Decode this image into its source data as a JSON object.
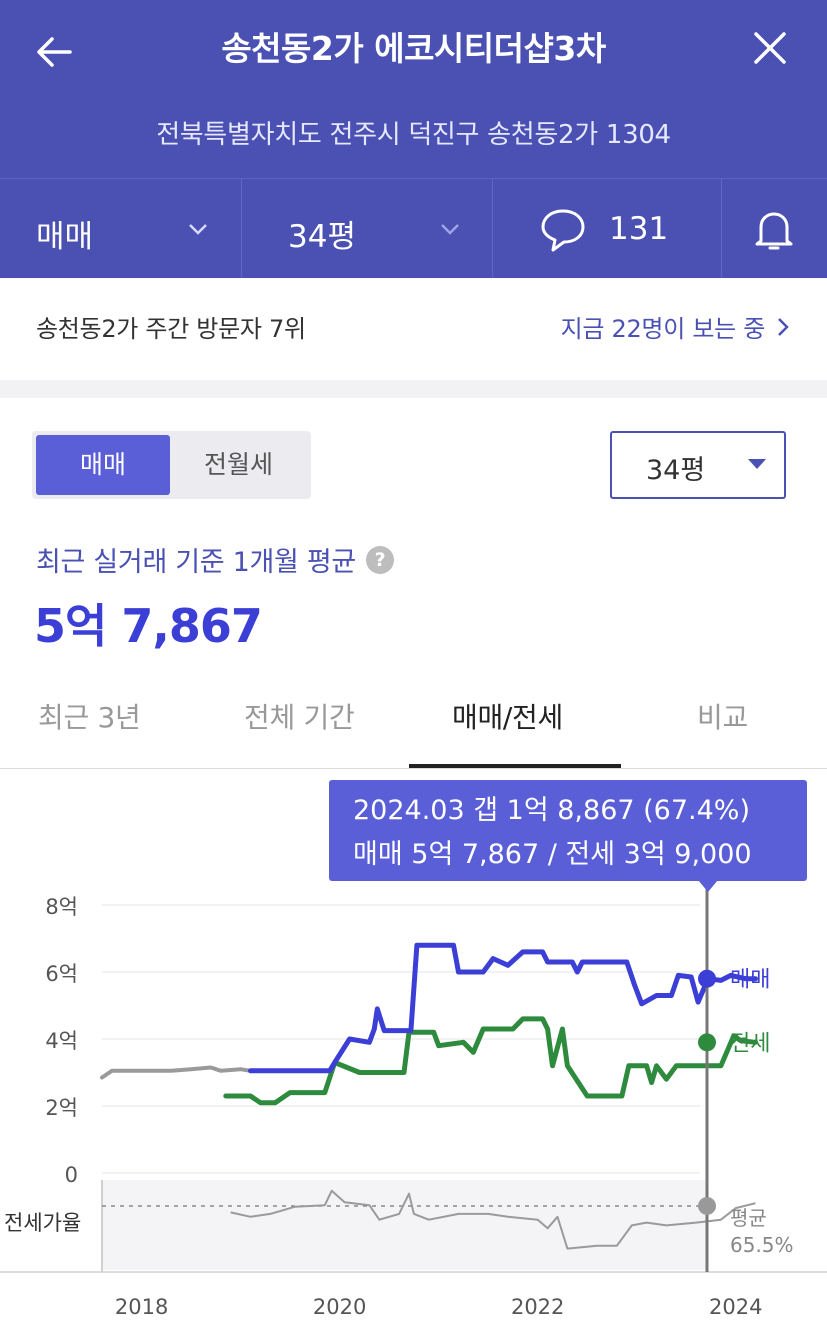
{
  "header": {
    "title": "송천동2가 에코시티더샵3차",
    "address": "전북특별자치도 전주시 덕진구 송천동2가 1304",
    "back_icon": "arrow-left-icon",
    "close_icon": "close-icon"
  },
  "filters": {
    "trade_type": "매매",
    "area": "34평",
    "comment_count": "131",
    "comment_icon": "speech-bubble-icon",
    "alarm_icon": "bell-icon"
  },
  "ranking": {
    "text": "송천동2가 주간 방문자 7위",
    "viewers": "지금 22명이 보는 중"
  },
  "controls": {
    "segment": [
      "매매",
      "전월세"
    ],
    "selected_segment": "매매",
    "size_select": "34평"
  },
  "summary": {
    "label": "최근 실거래 기준 1개월 평균",
    "price": "5억 7,867"
  },
  "tabs": [
    {
      "label": "최근 3년",
      "active": false
    },
    {
      "label": "전체 기간",
      "active": false
    },
    {
      "label": "매매/전세",
      "active": true
    },
    {
      "label": "비교",
      "active": false
    }
  ],
  "colors": {
    "brand": "#4a51b3",
    "accent": "#5a5fd8",
    "sale": "#3b3fd6",
    "jeonse": "#2e8b3e",
    "ratio": "#888888"
  },
  "tooltip": {
    "line1": "2024.03  갭 1억 8,867 (67.4%)",
    "line2": "매매 5억 7,867 / 전세 3억 9,000"
  },
  "chart_data": {
    "type": "line",
    "y_unit": "억",
    "ylim": [
      0,
      8
    ],
    "y_ticks": [
      "8억",
      "6억",
      "4억",
      "2억",
      "0"
    ],
    "y_tick_values": [
      8,
      6,
      4,
      2,
      0
    ],
    "x_ticks": [
      "2018",
      "2020",
      "2022",
      "2024"
    ],
    "x_tick_values": [
      2018,
      2020,
      2022,
      2024
    ],
    "xlim": [
      2017.6,
      2024.75
    ],
    "grid": true,
    "series": [
      {
        "name": "매매",
        "color": "#3b3fd6",
        "points": [
          [
            2019.1,
            3.05
          ],
          [
            2019.9,
            3.05
          ],
          [
            2019.95,
            3.3
          ],
          [
            2020.1,
            4.0
          ],
          [
            2020.3,
            3.9
          ],
          [
            2020.35,
            4.3
          ],
          [
            2020.38,
            4.9
          ],
          [
            2020.45,
            4.25
          ],
          [
            2020.72,
            4.25
          ],
          [
            2020.78,
            6.8
          ],
          [
            2021.15,
            6.8
          ],
          [
            2021.2,
            6.0
          ],
          [
            2021.45,
            6.0
          ],
          [
            2021.55,
            6.4
          ],
          [
            2021.7,
            6.2
          ],
          [
            2021.85,
            6.6
          ],
          [
            2022.05,
            6.6
          ],
          [
            2022.1,
            6.3
          ],
          [
            2022.35,
            6.3
          ],
          [
            2022.4,
            6.0
          ],
          [
            2022.45,
            6.3
          ],
          [
            2022.9,
            6.3
          ],
          [
            2022.98,
            5.6
          ],
          [
            2023.05,
            5.05
          ],
          [
            2023.2,
            5.3
          ],
          [
            2023.35,
            5.3
          ],
          [
            2023.42,
            5.9
          ],
          [
            2023.55,
            5.85
          ],
          [
            2023.62,
            5.1
          ],
          [
            2023.72,
            5.8
          ],
          [
            2023.85,
            5.75
          ],
          [
            2023.95,
            5.9
          ],
          [
            2024.1,
            5.8
          ],
          [
            2024.2,
            5.8
          ]
        ]
      },
      {
        "name": "전세",
        "color": "#2e8b3e",
        "points": [
          [
            2018.85,
            2.3
          ],
          [
            2019.1,
            2.3
          ],
          [
            2019.2,
            2.1
          ],
          [
            2019.35,
            2.1
          ],
          [
            2019.5,
            2.4
          ],
          [
            2019.85,
            2.4
          ],
          [
            2019.95,
            3.3
          ],
          [
            2020.2,
            3.0
          ],
          [
            2020.65,
            3.0
          ],
          [
            2020.7,
            4.2
          ],
          [
            2020.95,
            4.2
          ],
          [
            2021.0,
            3.8
          ],
          [
            2021.25,
            3.9
          ],
          [
            2021.35,
            3.6
          ],
          [
            2021.45,
            4.3
          ],
          [
            2021.75,
            4.3
          ],
          [
            2021.85,
            4.6
          ],
          [
            2022.05,
            4.6
          ],
          [
            2022.1,
            4.3
          ],
          [
            2022.15,
            3.2
          ],
          [
            2022.25,
            4.3
          ],
          [
            2022.3,
            3.2
          ],
          [
            2022.5,
            2.3
          ],
          [
            2022.85,
            2.3
          ],
          [
            2022.92,
            3.2
          ],
          [
            2023.1,
            3.2
          ],
          [
            2023.15,
            2.7
          ],
          [
            2023.2,
            3.2
          ],
          [
            2023.3,
            2.8
          ],
          [
            2023.4,
            3.2
          ],
          [
            2023.85,
            3.2
          ],
          [
            2023.98,
            4.1
          ],
          [
            2024.05,
            3.95
          ],
          [
            2024.2,
            3.9
          ]
        ]
      },
      {
        "name": "past",
        "color": "#9a9a9a",
        "points": [
          [
            2017.6,
            2.85
          ],
          [
            2017.7,
            3.05
          ],
          [
            2018.3,
            3.05
          ],
          [
            2018.5,
            3.1
          ],
          [
            2018.7,
            3.15
          ],
          [
            2018.8,
            3.05
          ],
          [
            2019.0,
            3.1
          ],
          [
            2019.1,
            3.05
          ]
        ]
      }
    ],
    "jeonse_ratio": {
      "label": "전세가율",
      "average_label": "평균",
      "average": "65.5%",
      "points": [
        [
          2018.9,
          61
        ],
        [
          2019.1,
          58
        ],
        [
          2019.3,
          60
        ],
        [
          2019.55,
          65
        ],
        [
          2019.85,
          66
        ],
        [
          2019.92,
          76
        ],
        [
          2020.05,
          68
        ],
        [
          2020.3,
          66
        ],
        [
          2020.4,
          56
        ],
        [
          2020.6,
          60
        ],
        [
          2020.7,
          74
        ],
        [
          2020.75,
          60
        ],
        [
          2020.9,
          56
        ],
        [
          2021.2,
          60
        ],
        [
          2021.5,
          60
        ],
        [
          2021.7,
          58
        ],
        [
          2022.0,
          56
        ],
        [
          2022.1,
          50
        ],
        [
          2022.2,
          58
        ],
        [
          2022.3,
          36
        ],
        [
          2022.6,
          38
        ],
        [
          2022.8,
          38
        ],
        [
          2022.95,
          52
        ],
        [
          2023.1,
          54
        ],
        [
          2023.3,
          52
        ],
        [
          2023.6,
          54
        ],
        [
          2023.85,
          56
        ],
        [
          2024.0,
          64
        ],
        [
          2024.2,
          67.4
        ]
      ]
    }
  }
}
